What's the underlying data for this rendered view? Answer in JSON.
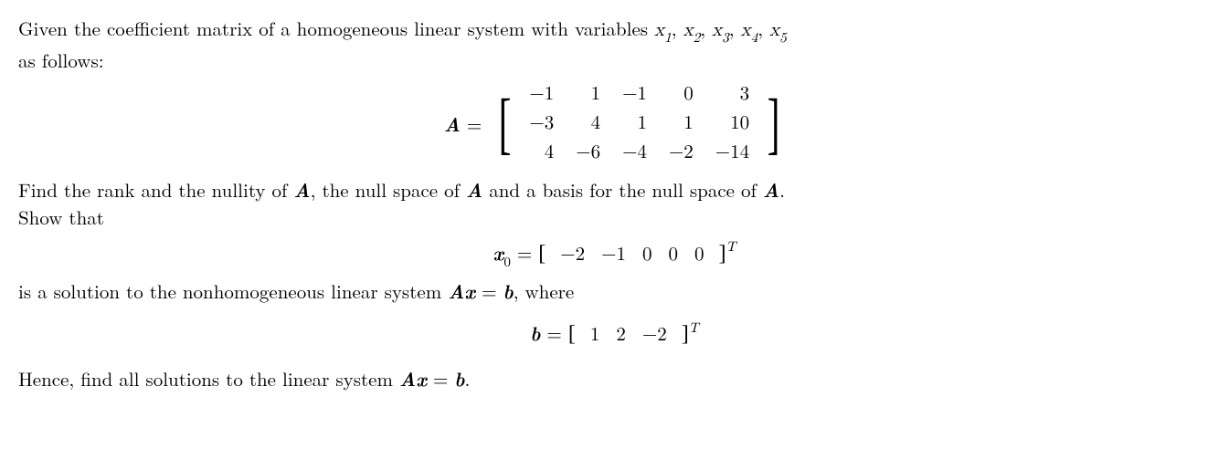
{
  "text": {
    "intro_line1_a": "Given the coefficient matrix of a homogeneous linear system with variables ",
    "intro_line2": "as follows:",
    "find_rank_a": "Find the rank and the nullity of ",
    "find_rank_b": ", the null space of ",
    "find_rank_c": " and a basis for the null space of ",
    "show_that": "Show that",
    "is_sol_a": "is a solution to the nonhomogeneous linear system ",
    "is_sol_b": ", where",
    "hence_a": "Hence, find all solutions to the linear system ",
    "period": ".",
    "comma": ", "
  },
  "symbols": {
    "A": "A",
    "b": "b",
    "x": "x",
    "x0": "x",
    "eq": " = ",
    "Ax_eq_b": "Ax = b",
    "T": "T",
    "zero": "0"
  },
  "vars": {
    "x1": "x",
    "s1": "1",
    "x2": "x",
    "s2": "2",
    "x3": "x",
    "s3": "3",
    "x4": "x",
    "s4": "4",
    "x5": "x",
    "s5": "5"
  },
  "matrixA": {
    "rows": [
      [
        "−1",
        "1",
        "−1",
        "0",
        "3"
      ],
      [
        "−3",
        "4",
        "1",
        "1",
        "10"
      ],
      [
        "4",
        "−6",
        "−4",
        "−2",
        "−14"
      ]
    ]
  },
  "x0_vec": [
    "−2",
    "−1",
    "0",
    "0",
    "0"
  ],
  "b_vec": [
    "1",
    "2",
    "−2"
  ],
  "style": {
    "fontsize_body": 21,
    "fontsize_sub": 15,
    "color_text": "#000000",
    "background": "#ffffff",
    "matrix_cell_padding_h": 12
  }
}
